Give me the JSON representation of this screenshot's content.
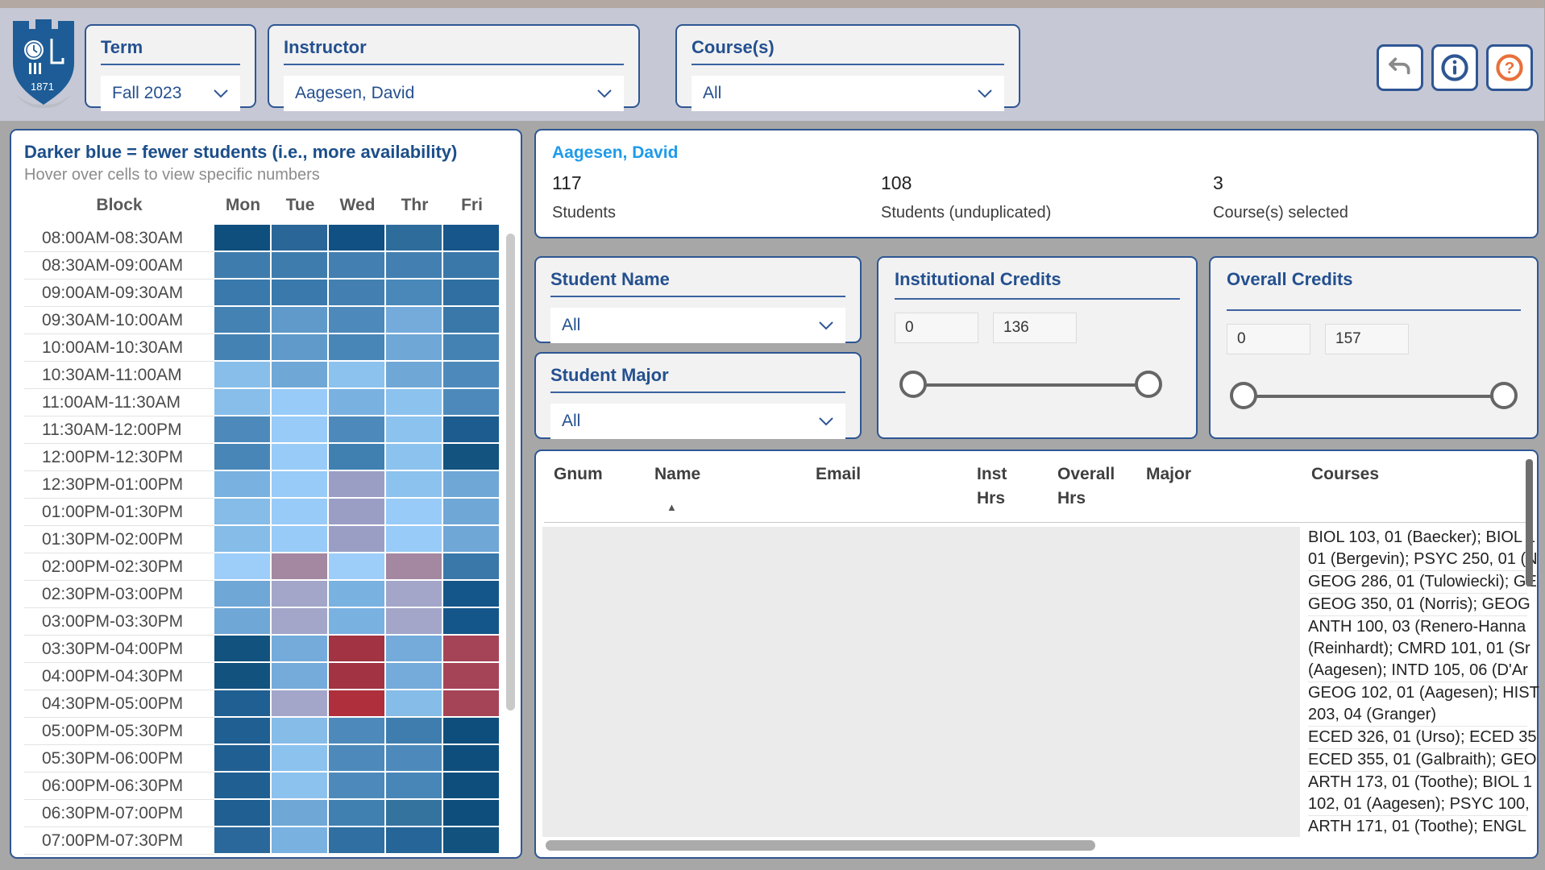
{
  "header": {
    "logo_year": "1871",
    "filters": [
      {
        "label": "Term",
        "value": "Fall 2023"
      },
      {
        "label": "Instructor",
        "value": "Aagesen, David"
      },
      {
        "label": "Course(s)",
        "value": "All"
      }
    ],
    "buttons": [
      {
        "name": "undo"
      },
      {
        "name": "info"
      },
      {
        "name": "help"
      }
    ]
  },
  "heatmap": {
    "title": "Darker blue = fewer students (i.e., more availability)",
    "subtitle": "Hover over cells to view specific numbers",
    "block_header": "Block",
    "day_headers": [
      "Mon",
      "Tue",
      "Wed",
      "Thr",
      "Fri"
    ],
    "rows": [
      {
        "block": "08:00AM-08:30AM",
        "colors": [
          "#0F4F7E",
          "#2A6697",
          "#115083",
          "#2E6C9C",
          "#16568A"
        ]
      },
      {
        "block": "08:30AM-09:00AM",
        "colors": [
          "#3E7CAD",
          "#3E7CAD",
          "#4380B1",
          "#4380B1",
          "#3A78A9"
        ]
      },
      {
        "block": "09:00AM-09:30AM",
        "colors": [
          "#3A79AB",
          "#3A79AB",
          "#4380B1",
          "#4988B9",
          "#2F6FA1"
        ]
      },
      {
        "block": "09:30AM-10:00AM",
        "colors": [
          "#4482B3",
          "#5F9ACA",
          "#4D89BA",
          "#74ABDB",
          "#3A78A9"
        ]
      },
      {
        "block": "10:00AM-10:30AM",
        "colors": [
          "#4482B3",
          "#5F9ACA",
          "#4886B7",
          "#6FA7D7",
          "#4482B3"
        ]
      },
      {
        "block": "10:30AM-11:00AM",
        "colors": [
          "#87BEEA",
          "#6FA7D7",
          "#8CC2EE",
          "#6FA7D7",
          "#4D8ABB"
        ]
      },
      {
        "block": "11:00AM-11:30AM",
        "colors": [
          "#87BEEA",
          "#98CBF7",
          "#79B1E1",
          "#8CC2EE",
          "#4D8ABB"
        ]
      },
      {
        "block": "11:30AM-12:00PM",
        "colors": [
          "#4D8ABB",
          "#98CBF7",
          "#4D8ABB",
          "#8CC2EE",
          "#1C5C8F"
        ]
      },
      {
        "block": "12:00PM-12:30PM",
        "colors": [
          "#4886B8",
          "#98CBF7",
          "#4080B1",
          "#8CC2EE",
          "#12537F"
        ]
      },
      {
        "block": "12:30PM-01:00PM",
        "colors": [
          "#79B1E1",
          "#98CBF7",
          "#9B9EC4",
          "#8CC2EE",
          "#6FA7D7"
        ]
      },
      {
        "block": "01:00PM-01:30PM",
        "colors": [
          "#85BCE8",
          "#98CBF7",
          "#9B9EC4",
          "#98CBF7",
          "#6FA7D7"
        ]
      },
      {
        "block": "01:30PM-02:00PM",
        "colors": [
          "#85BCE8",
          "#98CBF7",
          "#9B9EC4",
          "#98CBF7",
          "#6FA7D7"
        ]
      },
      {
        "block": "02:00PM-02:30PM",
        "colors": [
          "#9CCEF9",
          "#A487A0",
          "#9CCEF9",
          "#A487A0",
          "#3A78A9"
        ]
      },
      {
        "block": "02:30PM-03:00PM",
        "colors": [
          "#6FA7D7",
          "#A3A6C9",
          "#79B1E1",
          "#A3A6C9",
          "#15568A"
        ]
      },
      {
        "block": "03:00PM-03:30PM",
        "colors": [
          "#6FA7D7",
          "#A3A6C9",
          "#79B1E1",
          "#A3A6C9",
          "#15568A"
        ]
      },
      {
        "block": "03:30PM-04:00PM",
        "colors": [
          "#12527F",
          "#74ABDB",
          "#A23343",
          "#74ABDB",
          "#A64457"
        ]
      },
      {
        "block": "04:00PM-04:30PM",
        "colors": [
          "#12527F",
          "#74ABDB",
          "#A23343",
          "#74ABDB",
          "#A64457"
        ]
      },
      {
        "block": "04:30PM-05:00PM",
        "colors": [
          "#1F5F92",
          "#A3A6C9",
          "#B02F3C",
          "#85BCE8",
          "#A64457"
        ]
      },
      {
        "block": "05:00PM-05:30PM",
        "colors": [
          "#1F5F92",
          "#85BCE8",
          "#4D8ABB",
          "#3F7DAE",
          "#0E4E7C"
        ]
      },
      {
        "block": "05:30PM-06:00PM",
        "colors": [
          "#1F5F92",
          "#8CC2EE",
          "#4D8ABB",
          "#4D8ABB",
          "#0E4E7C"
        ]
      },
      {
        "block": "06:00PM-06:30PM",
        "colors": [
          "#1F5F92",
          "#8CC2EE",
          "#4D8ABB",
          "#4886B8",
          "#0E4E7C"
        ]
      },
      {
        "block": "06:30PM-07:00PM",
        "colors": [
          "#1F5F92",
          "#6FA7D7",
          "#4080B1",
          "#35739F",
          "#0E4E7C"
        ]
      },
      {
        "block": "07:00PM-07:30PM",
        "colors": [
          "#2A689B",
          "#79B1E1",
          "#2F6FA1",
          "#256597",
          "#12527F"
        ]
      }
    ]
  },
  "details": {
    "instructor_name": "Aagesen, David",
    "stats": [
      {
        "value": "117",
        "label": "Students"
      },
      {
        "value": "108",
        "label": "Students (unduplicated)"
      },
      {
        "value": "3",
        "label": "Course(s) selected"
      }
    ]
  },
  "student_name_filter": {
    "label": "Student Name",
    "value": "All"
  },
  "student_major_filter": {
    "label": "Student Major",
    "value": "All"
  },
  "institutional_credits": {
    "title": "Institutional Credits",
    "min": "0",
    "max": "136"
  },
  "overall_credits": {
    "title": "Overall Credits",
    "min": "0",
    "max": "157"
  },
  "roster_table": {
    "columns": [
      {
        "lines": [
          "Gnum"
        ]
      },
      {
        "lines": [
          "Name"
        ]
      },
      {
        "lines": [
          "Email"
        ]
      },
      {
        "lines": [
          "Inst",
          "Hrs"
        ]
      },
      {
        "lines": [
          "Overall",
          "Hrs"
        ]
      },
      {
        "lines": [
          "Major"
        ]
      },
      {
        "lines": [
          "Courses"
        ]
      }
    ],
    "rows": [
      {
        "courses_lines": [
          "BIOL 103, 01 (Baecker); BIOL 1",
          "01 (Bergevin); PSYC 250, 01 (N"
        ]
      },
      {
        "courses_lines": [
          "GEOG 286, 01 (Tulowiecki); GE"
        ]
      },
      {
        "courses_lines": [
          "GEOG 350, 01 (Norris); GEOG"
        ]
      },
      {
        "courses_lines": [
          "ANTH 100, 03 (Renero-Hanna",
          "(Reinhardt); CMRD 101, 01 (Sr",
          "(Aagesen); INTD 105, 06 (D'Ar"
        ]
      },
      {
        "courses_lines": [
          "GEOG 102, 01 (Aagesen); HIST",
          "203, 04 (Granger)"
        ]
      },
      {
        "courses_lines": [
          "ECED 326, 01 (Urso); ECED 35"
        ]
      },
      {
        "courses_lines": [
          "ECED 355, 01 (Galbraith); GEO"
        ]
      },
      {
        "courses_lines": [
          "ARTH 173, 01 (Toothe); BIOL 1",
          "102, 01 (Aagesen); PSYC 100,"
        ]
      },
      {
        "courses_lines": [
          "ARTH 171, 01 (Toothe); ENGL"
        ]
      }
    ]
  },
  "colors": {
    "accent_border": "#2E5693",
    "label_blue": "#24508F",
    "instructor_link_blue": "#1E9BE9",
    "help_orange": "#E8703A"
  }
}
